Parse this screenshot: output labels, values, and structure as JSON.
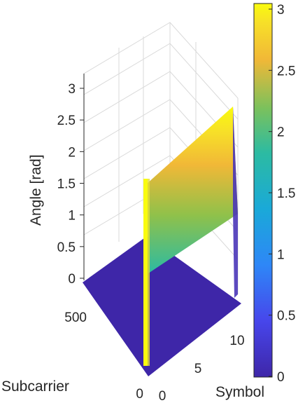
{
  "chart_data": {
    "type": "surface",
    "title": "",
    "xlabel": "Symbol",
    "ylabel": "Subcarrier",
    "zlabel": "Angle [rad]",
    "x_ticks": [
      "0",
      "5",
      "10"
    ],
    "y_ticks": [
      "0",
      "500"
    ],
    "z_ticks": [
      "0",
      "0.5",
      "1",
      "1.5",
      "2",
      "2.5",
      "3"
    ],
    "xlim": [
      0,
      13
    ],
    "ylim": [
      0,
      700
    ],
    "zlim": [
      0,
      3.2
    ],
    "colormap": "parula",
    "colorbar": {
      "ticks": [
        "0",
        "0.5",
        "1",
        "1.5",
        "2",
        "2.5",
        "3"
      ],
      "range": [
        0,
        3.05
      ]
    },
    "surface": {
      "description_values": {
        "low_region_angle": 0,
        "ramp_start_angle": 0,
        "ramp_end_angle": 3.0,
        "spike_subcarrier": 0,
        "spike_angle": 3.0
      }
    },
    "grid": true
  }
}
